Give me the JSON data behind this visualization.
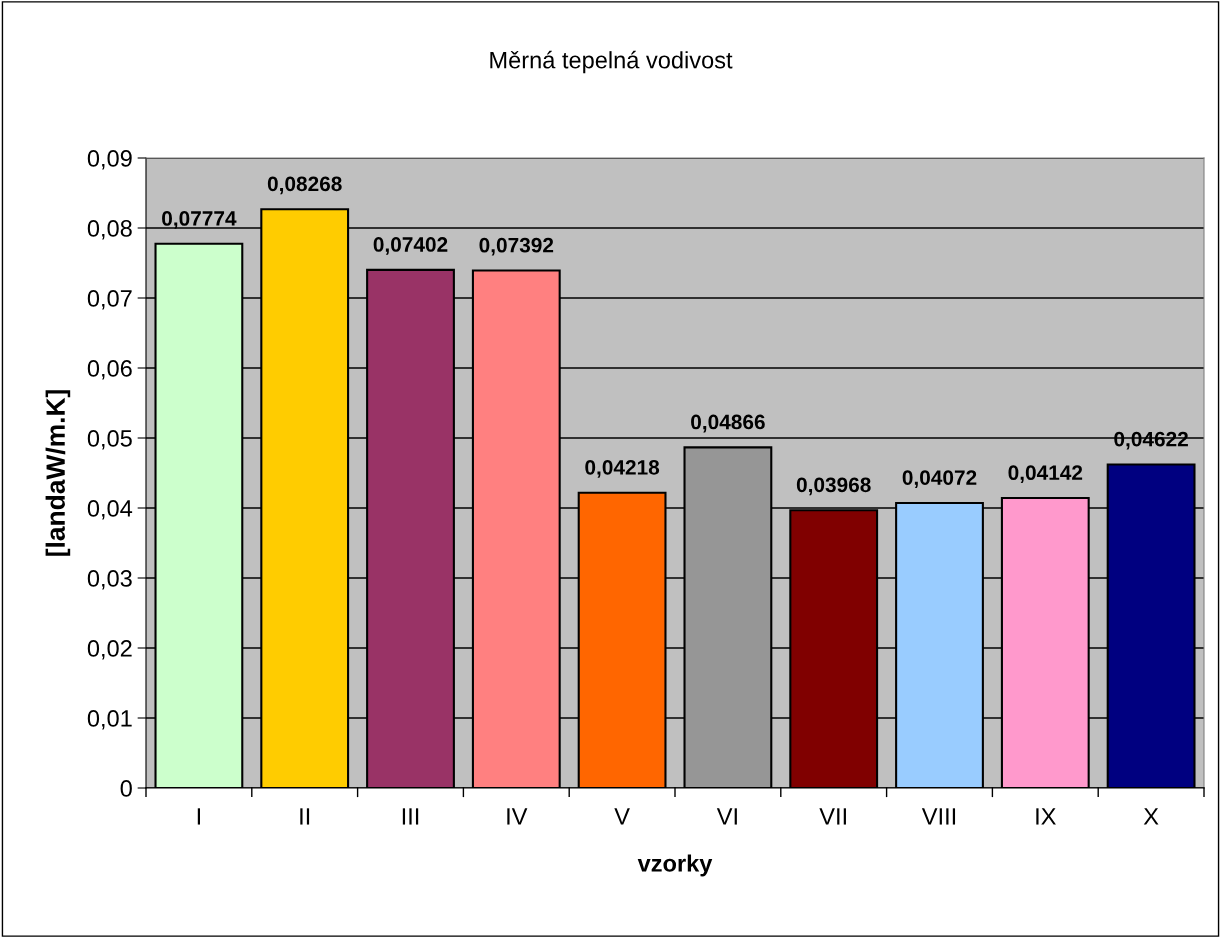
{
  "chart_data": {
    "type": "bar",
    "title": "Měrná tepelná vodivost",
    "xlabel": "vzorky",
    "ylabel": "[landaW/m.K]",
    "categories": [
      "I",
      "II",
      "III",
      "IV",
      "V",
      "VI",
      "VII",
      "VIII",
      "IX",
      "X"
    ],
    "values": [
      0.07774,
      0.08268,
      0.07402,
      0.07392,
      0.04218,
      0.04866,
      0.03968,
      0.04072,
      0.04142,
      0.04622
    ],
    "value_labels": [
      "0,07774",
      "0,08268",
      "0,07402",
      "0,07392",
      "0,04218",
      "0,04866",
      "0,03968",
      "0,04072",
      "0,04142",
      "0,04622"
    ],
    "colors": [
      "#ccffcc",
      "#ffcc00",
      "#993366",
      "#ff8080",
      "#ff6600",
      "#969696",
      "#800000",
      "#99ccff",
      "#ff99cc",
      "#000080"
    ],
    "ylim": [
      0,
      0.09
    ],
    "yticks": [
      {
        "value": 0,
        "label": "0"
      },
      {
        "value": 0.01,
        "label": "0,01"
      },
      {
        "value": 0.02,
        "label": "0,02"
      },
      {
        "value": 0.03,
        "label": "0,03"
      },
      {
        "value": 0.04,
        "label": "0,04"
      },
      {
        "value": 0.05,
        "label": "0,05"
      },
      {
        "value": 0.06,
        "label": "0,06"
      },
      {
        "value": 0.07,
        "label": "0,07"
      },
      {
        "value": 0.08,
        "label": "0,08"
      },
      {
        "value": 0.09,
        "label": "0,09"
      }
    ],
    "grid": "y",
    "legend": false
  }
}
